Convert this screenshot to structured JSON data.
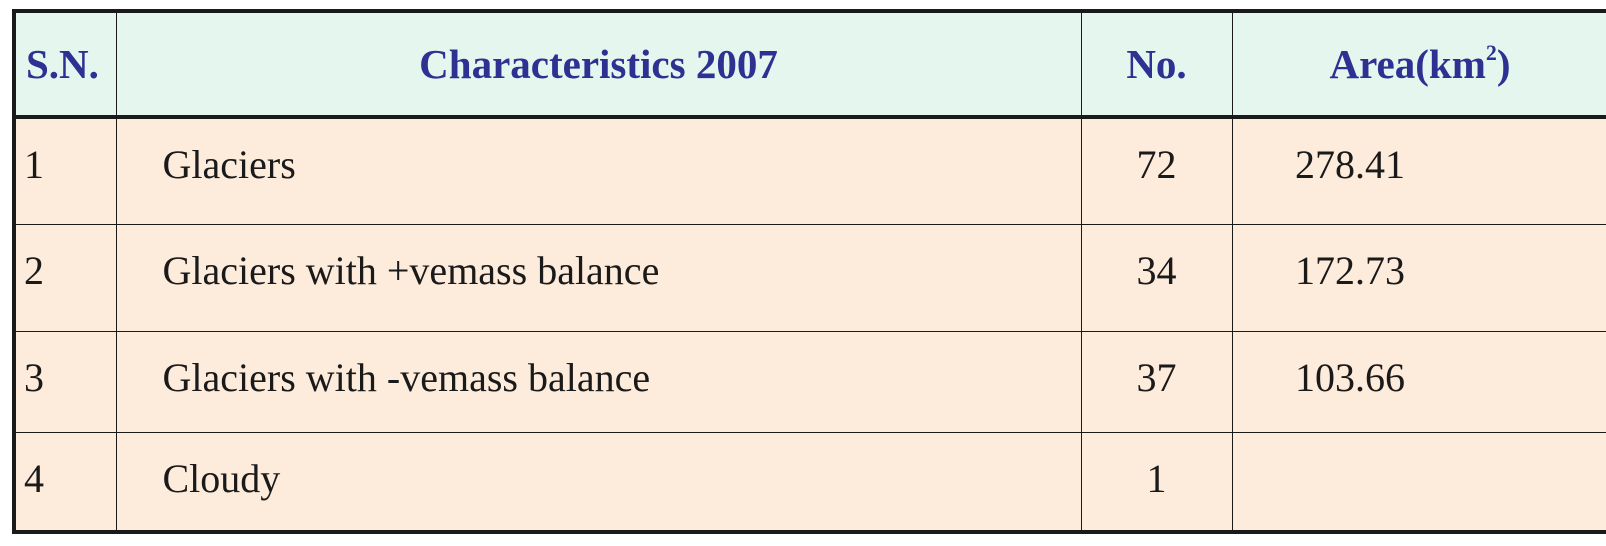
{
  "table": {
    "headers": {
      "sn": "S.N.",
      "characteristics": "Characteristics 2007",
      "no": "No.",
      "area_prefix": "Area(km",
      "area_sup": "2",
      "area_suffix": ")"
    },
    "rows": [
      {
        "sn": "1",
        "characteristics": "Glaciers",
        "no": "72",
        "area": "278.41"
      },
      {
        "sn": "2",
        "characteristics": "Glaciers with +vemass balance",
        "no": "34",
        "area": "172.73"
      },
      {
        "sn": "3",
        "characteristics": "Glaciers with -vemass balance",
        "no": "37",
        "area": "103.66"
      },
      {
        "sn": "4",
        "characteristics": "Cloudy",
        "no": "1",
        "area": ""
      }
    ]
  },
  "colors": {
    "header_bg": "#e5f6ee",
    "header_text": "#2e3192",
    "body_bg": "#fdebdc",
    "border": "#1a1a1a"
  }
}
